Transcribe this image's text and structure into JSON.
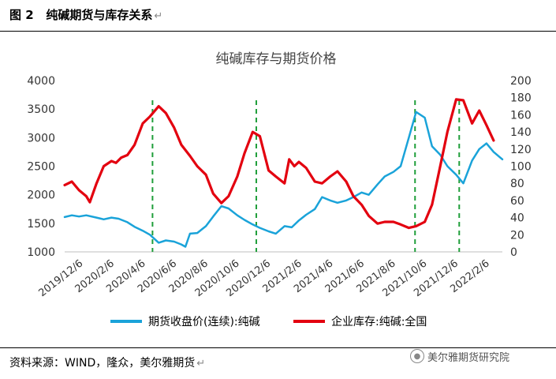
{
  "figure": {
    "label": "图 2",
    "title": "纯碱期货与库存关系",
    "return_mark": "↵"
  },
  "source": {
    "text": "资料来源：WIND，隆众，美尔雅期货",
    "return_mark": "↵"
  },
  "watermark": {
    "text": "美尔雅期货研究院",
    "icon": "wechat-icon"
  },
  "chart_data": {
    "type": "line",
    "title": "纯碱库存与期货价格",
    "x_tick_labels": [
      "2019/12/6",
      "2020/2/6",
      "2020/4/6",
      "2020/6/6",
      "2020/8/6",
      "2020/10/6",
      "2020/12/6",
      "2021/2/6",
      "2021/4/6",
      "2021/6/6",
      "2021/8/6",
      "2021/10/6",
      "2021/12/6",
      "2022/2/6"
    ],
    "x_range": [
      "2019-12-06",
      "2022-04-06"
    ],
    "y_left": {
      "min": 1000,
      "max": 4000,
      "ticks": [
        1000,
        1500,
        2000,
        2500,
        3000,
        3500,
        4000
      ]
    },
    "y_right": {
      "min": 0,
      "max": 200,
      "ticks": [
        0,
        20,
        40,
        60,
        80,
        100,
        120,
        140,
        160,
        180,
        200
      ]
    },
    "grid": false,
    "legend_position": "bottom",
    "series": [
      {
        "name": "期货收盘价(连续):纯碱",
        "axis": "left",
        "color": "#1aa3d9",
        "points": [
          [
            "2019-12-06",
            1610
          ],
          [
            "2019-12-20",
            1640
          ],
          [
            "2020-01-03",
            1620
          ],
          [
            "2020-01-17",
            1640
          ],
          [
            "2020-02-06",
            1600
          ],
          [
            "2020-02-20",
            1570
          ],
          [
            "2020-03-06",
            1600
          ],
          [
            "2020-03-20",
            1580
          ],
          [
            "2020-04-06",
            1520
          ],
          [
            "2020-04-20",
            1440
          ],
          [
            "2020-05-06",
            1370
          ],
          [
            "2020-05-20",
            1300
          ],
          [
            "2020-06-06",
            1160
          ],
          [
            "2020-06-20",
            1200
          ],
          [
            "2020-07-06",
            1180
          ],
          [
            "2020-07-20",
            1130
          ],
          [
            "2020-07-28",
            1090
          ],
          [
            "2020-08-06",
            1320
          ],
          [
            "2020-08-20",
            1330
          ],
          [
            "2020-09-06",
            1450
          ],
          [
            "2020-09-20",
            1620
          ],
          [
            "2020-10-06",
            1800
          ],
          [
            "2020-10-20",
            1760
          ],
          [
            "2020-11-06",
            1640
          ],
          [
            "2020-11-20",
            1560
          ],
          [
            "2020-12-06",
            1480
          ],
          [
            "2020-12-20",
            1420
          ],
          [
            "2021-01-06",
            1360
          ],
          [
            "2021-01-20",
            1320
          ],
          [
            "2021-02-06",
            1450
          ],
          [
            "2021-02-20",
            1430
          ],
          [
            "2021-03-06",
            1550
          ],
          [
            "2021-03-20",
            1650
          ],
          [
            "2021-04-06",
            1750
          ],
          [
            "2021-04-20",
            1960
          ],
          [
            "2021-05-06",
            1900
          ],
          [
            "2021-05-20",
            1860
          ],
          [
            "2021-06-06",
            1900
          ],
          [
            "2021-06-20",
            1960
          ],
          [
            "2021-07-06",
            2040
          ],
          [
            "2021-07-20",
            2000
          ],
          [
            "2021-08-06",
            2180
          ],
          [
            "2021-08-20",
            2320
          ],
          [
            "2021-09-06",
            2400
          ],
          [
            "2021-09-20",
            2500
          ],
          [
            "2021-10-06",
            3000
          ],
          [
            "2021-10-20",
            3450
          ],
          [
            "2021-11-06",
            3350
          ],
          [
            "2021-11-20",
            2850
          ],
          [
            "2021-12-06",
            2700
          ],
          [
            "2021-12-20",
            2500
          ],
          [
            "2022-01-06",
            2350
          ],
          [
            "2022-01-20",
            2200
          ],
          [
            "2022-02-06",
            2600
          ],
          [
            "2022-02-20",
            2800
          ],
          [
            "2022-03-06",
            2900
          ],
          [
            "2022-03-20",
            2750
          ],
          [
            "2022-04-06",
            2620
          ]
        ]
      },
      {
        "name": "企业库存:纯碱:全国",
        "axis": "right",
        "color": "#e3000f",
        "points": [
          [
            "2019-12-06",
            78
          ],
          [
            "2019-12-20",
            82
          ],
          [
            "2020-01-03",
            72
          ],
          [
            "2020-01-17",
            65
          ],
          [
            "2020-01-24",
            58
          ],
          [
            "2020-02-06",
            80
          ],
          [
            "2020-02-20",
            100
          ],
          [
            "2020-03-06",
            106
          ],
          [
            "2020-03-15",
            104
          ],
          [
            "2020-03-25",
            110
          ],
          [
            "2020-04-06",
            113
          ],
          [
            "2020-04-20",
            125
          ],
          [
            "2020-05-06",
            150
          ],
          [
            "2020-05-20",
            158
          ],
          [
            "2020-06-06",
            170
          ],
          [
            "2020-06-20",
            162
          ],
          [
            "2020-07-06",
            145
          ],
          [
            "2020-07-20",
            125
          ],
          [
            "2020-08-06",
            112
          ],
          [
            "2020-08-20",
            100
          ],
          [
            "2020-09-06",
            90
          ],
          [
            "2020-09-20",
            68
          ],
          [
            "2020-10-06",
            57
          ],
          [
            "2020-10-20",
            65
          ],
          [
            "2020-11-06",
            88
          ],
          [
            "2020-11-20",
            115
          ],
          [
            "2020-12-06",
            140
          ],
          [
            "2020-12-20",
            135
          ],
          [
            "2021-01-06",
            95
          ],
          [
            "2021-01-20",
            88
          ],
          [
            "2021-02-06",
            80
          ],
          [
            "2021-02-15",
            108
          ],
          [
            "2021-02-25",
            100
          ],
          [
            "2021-03-06",
            105
          ],
          [
            "2021-03-20",
            98
          ],
          [
            "2021-04-06",
            82
          ],
          [
            "2021-04-20",
            80
          ],
          [
            "2021-05-06",
            88
          ],
          [
            "2021-05-20",
            94
          ],
          [
            "2021-06-06",
            82
          ],
          [
            "2021-06-20",
            65
          ],
          [
            "2021-07-06",
            55
          ],
          [
            "2021-07-20",
            42
          ],
          [
            "2021-08-06",
            33
          ],
          [
            "2021-08-20",
            35
          ],
          [
            "2021-09-06",
            35
          ],
          [
            "2021-09-20",
            32
          ],
          [
            "2021-10-06",
            28
          ],
          [
            "2021-10-20",
            30
          ],
          [
            "2021-11-06",
            35
          ],
          [
            "2021-11-20",
            55
          ],
          [
            "2021-12-06",
            100
          ],
          [
            "2021-12-20",
            140
          ],
          [
            "2022-01-06",
            178
          ],
          [
            "2022-01-20",
            177
          ],
          [
            "2022-02-06",
            150
          ],
          [
            "2022-02-20",
            165
          ],
          [
            "2022-03-06",
            148
          ],
          [
            "2022-03-20",
            130
          ]
        ]
      }
    ],
    "annotations": {
      "type": "vertical-dashed-lines",
      "color": "#1f9e3a",
      "dates": [
        "2020-05-25",
        "2020-12-13",
        "2021-10-18",
        "2022-01-12"
      ]
    }
  }
}
